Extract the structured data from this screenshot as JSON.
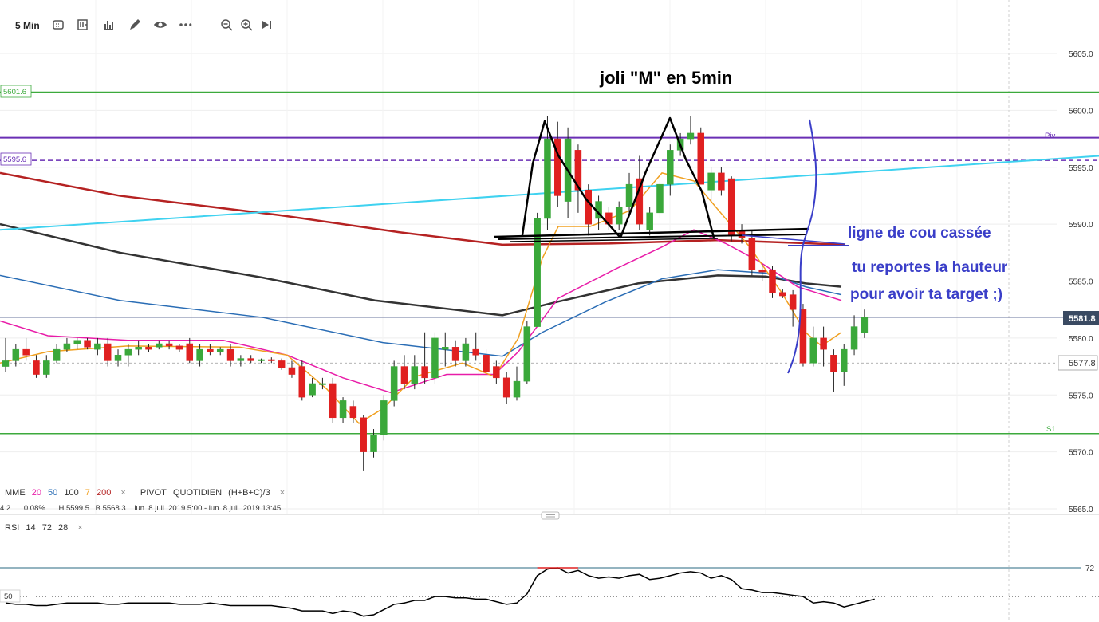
{
  "toolbar": {
    "timeframe": "5 Min",
    "icons": [
      "chart-type-icon",
      "indicators-icon",
      "bar-chart-icon",
      "pencil-icon",
      "eye-icon",
      "more-icon",
      "zoom-out-icon",
      "zoom-in-icon",
      "play-end-icon"
    ]
  },
  "colors": {
    "up": "#3aa83a",
    "down": "#e02020",
    "mme20": "#e81ca8",
    "mme50": "#2a6db5",
    "mme100": "#333333",
    "mme7": "#f0a020",
    "mme200": "#b52222",
    "trend": "#3fd2f0",
    "support": "#3caa3c",
    "pivot": "#6a2fb5",
    "annotation": "#3a3ec8"
  },
  "annotations": {
    "title": "joli \"M\" en 5min",
    "neckline": "ligne de cou cassée",
    "target_line1": "tu reportes la hauteur",
    "target_line2": "pour avoir ta target ;)"
  },
  "levels": {
    "r_label": "5601.6",
    "pivot_label": "5595.6",
    "piv_text": "Piv",
    "s1_text": "S1",
    "current_price": "5581.8",
    "cross_price": "5577.8",
    "rsi_level": "72",
    "rsi_mid": "50"
  },
  "legend": {
    "mme_label": "MME",
    "mme_periods": [
      "20",
      "50",
      "100",
      "7",
      "200"
    ],
    "pivot_label": "PIVOT",
    "pivot_type": "QUOTIDIEN",
    "pivot_formula": "(H+B+C)/3",
    "close_icon": "×",
    "info_change": "4.2",
    "info_pct": "0.08%",
    "info_high": "H 5599.5",
    "info_low": "B 5568.3",
    "info_range": "lun. 8 juil. 2019 5:00 - lun. 8 juil. 2019 13:45",
    "rsi_label": "RSI",
    "rsi_params": [
      "14",
      "72",
      "28"
    ]
  },
  "chart_data": {
    "type": "candlestick",
    "y_ticks": [
      "5605.0",
      "5600.0",
      "5595.0",
      "5590.0",
      "5585.0",
      "5580.0",
      "5575.0",
      "5570.0",
      "5565.0"
    ],
    "ylim": [
      5564.5,
      5608.5
    ],
    "candles": [
      {
        "o": 5577.5,
        "h": 5580.0,
        "l": 5577.0,
        "c": 5578.0
      },
      {
        "o": 5578.0,
        "h": 5579.5,
        "l": 5577.5,
        "c": 5579.0
      },
      {
        "o": 5579.0,
        "h": 5580.0,
        "l": 5578.0,
        "c": 5578.5
      },
      {
        "o": 5578.0,
        "h": 5578.5,
        "l": 5576.5,
        "c": 5576.8
      },
      {
        "o": 5576.8,
        "h": 5578.5,
        "l": 5576.5,
        "c": 5578.0
      },
      {
        "o": 5578.0,
        "h": 5579.5,
        "l": 5577.8,
        "c": 5579.0
      },
      {
        "o": 5579.0,
        "h": 5580.0,
        "l": 5578.8,
        "c": 5579.5
      },
      {
        "o": 5579.5,
        "h": 5580.0,
        "l": 5579.0,
        "c": 5579.8
      },
      {
        "o": 5579.8,
        "h": 5580.0,
        "l": 5579.0,
        "c": 5579.2
      },
      {
        "o": 5579.0,
        "h": 5580.0,
        "l": 5578.5,
        "c": 5579.5
      },
      {
        "o": 5579.5,
        "h": 5580.0,
        "l": 5577.5,
        "c": 5578.0
      },
      {
        "o": 5578.0,
        "h": 5579.0,
        "l": 5577.5,
        "c": 5578.5
      },
      {
        "o": 5578.5,
        "h": 5579.5,
        "l": 5577.5,
        "c": 5579.0
      },
      {
        "o": 5579.0,
        "h": 5579.8,
        "l": 5578.5,
        "c": 5579.2
      },
      {
        "o": 5579.2,
        "h": 5579.5,
        "l": 5578.8,
        "c": 5579.0
      },
      {
        "o": 5579.2,
        "h": 5579.8,
        "l": 5579.0,
        "c": 5579.5
      },
      {
        "o": 5579.5,
        "h": 5579.8,
        "l": 5579.0,
        "c": 5579.3
      },
      {
        "o": 5579.3,
        "h": 5579.5,
        "l": 5578.8,
        "c": 5579.0
      },
      {
        "o": 5579.5,
        "h": 5580.0,
        "l": 5577.8,
        "c": 5578.0
      },
      {
        "o": 5578.0,
        "h": 5579.5,
        "l": 5577.5,
        "c": 5579.0
      },
      {
        "o": 5579.0,
        "h": 5579.5,
        "l": 5578.5,
        "c": 5578.8
      },
      {
        "o": 5578.8,
        "h": 5579.2,
        "l": 5578.5,
        "c": 5579.0
      },
      {
        "o": 5579.0,
        "h": 5579.5,
        "l": 5577.5,
        "c": 5578.0
      },
      {
        "o": 5578.0,
        "h": 5578.5,
        "l": 5577.5,
        "c": 5578.2
      },
      {
        "o": 5578.2,
        "h": 5578.5,
        "l": 5577.8,
        "c": 5578.0
      },
      {
        "o": 5578.0,
        "h": 5578.2,
        "l": 5577.8,
        "c": 5578.1
      },
      {
        "o": 5578.1,
        "h": 5578.3,
        "l": 5577.8,
        "c": 5578.0
      },
      {
        "o": 5578.0,
        "h": 5578.2,
        "l": 5577.2,
        "c": 5577.4
      },
      {
        "o": 5577.4,
        "h": 5578.0,
        "l": 5576.5,
        "c": 5576.8
      },
      {
        "o": 5577.5,
        "h": 5578.0,
        "l": 5574.5,
        "c": 5574.8
      },
      {
        "o": 5575.0,
        "h": 5576.5,
        "l": 5574.8,
        "c": 5576.0
      },
      {
        "o": 5576.0,
        "h": 5576.5,
        "l": 5575.5,
        "c": 5576.0
      },
      {
        "o": 5576.0,
        "h": 5576.5,
        "l": 5572.5,
        "c": 5573.0
      },
      {
        "o": 5573.0,
        "h": 5574.8,
        "l": 5572.5,
        "c": 5574.5
      },
      {
        "o": 5574.0,
        "h": 5574.5,
        "l": 5572.5,
        "c": 5573.0
      },
      {
        "o": 5573.0,
        "h": 5573.2,
        "l": 5568.3,
        "c": 5570.0
      },
      {
        "o": 5570.0,
        "h": 5572.0,
        "l": 5569.5,
        "c": 5571.5
      },
      {
        "o": 5571.5,
        "h": 5575.0,
        "l": 5571.0,
        "c": 5574.5
      },
      {
        "o": 5574.5,
        "h": 5578.0,
        "l": 5574.0,
        "c": 5577.5
      },
      {
        "o": 5577.5,
        "h": 5578.5,
        "l": 5575.5,
        "c": 5576.0
      },
      {
        "o": 5576.0,
        "h": 5578.5,
        "l": 5575.5,
        "c": 5577.5
      },
      {
        "o": 5577.5,
        "h": 5580.5,
        "l": 5576.0,
        "c": 5576.5
      },
      {
        "o": 5576.5,
        "h": 5580.5,
        "l": 5576.0,
        "c": 5580.0
      },
      {
        "o": 5579.0,
        "h": 5580.5,
        "l": 5577.5,
        "c": 5579.2
      },
      {
        "o": 5579.2,
        "h": 5579.8,
        "l": 5577.5,
        "c": 5578.0
      },
      {
        "o": 5578.0,
        "h": 5580.0,
        "l": 5577.5,
        "c": 5579.5
      },
      {
        "o": 5579.0,
        "h": 5580.5,
        "l": 5578.0,
        "c": 5578.5
      },
      {
        "o": 5578.5,
        "h": 5579.0,
        "l": 5577.0,
        "c": 5577.0
      },
      {
        "o": 5577.5,
        "h": 5578.0,
        "l": 5576.0,
        "c": 5576.5
      },
      {
        "o": 5576.5,
        "h": 5577.0,
        "l": 5574.2,
        "c": 5574.8
      },
      {
        "o": 5574.8,
        "h": 5577.5,
        "l": 5574.5,
        "c": 5576.2
      },
      {
        "o": 5576.2,
        "h": 5581.5,
        "l": 5576.0,
        "c": 5581.0
      },
      {
        "o": 5581.0,
        "h": 5591.0,
        "l": 5581.0,
        "c": 5590.5
      },
      {
        "o": 5590.5,
        "h": 5599.5,
        "l": 5589.5,
        "c": 5597.5
      },
      {
        "o": 5597.5,
        "h": 5599.0,
        "l": 5591.5,
        "c": 5592.5
      },
      {
        "o": 5592.0,
        "h": 5598.5,
        "l": 5590.5,
        "c": 5597.5
      },
      {
        "o": 5596.5,
        "h": 5597.0,
        "l": 5591.0,
        "c": 5593.0
      },
      {
        "o": 5593.0,
        "h": 5593.5,
        "l": 5589.0,
        "c": 5590.0
      },
      {
        "o": 5590.5,
        "h": 5592.5,
        "l": 5589.5,
        "c": 5592.0
      },
      {
        "o": 5591.0,
        "h": 5591.5,
        "l": 5589.5,
        "c": 5590.0
      },
      {
        "o": 5590.0,
        "h": 5592.0,
        "l": 5589.5,
        "c": 5591.5
      },
      {
        "o": 5591.5,
        "h": 5594.5,
        "l": 5591.0,
        "c": 5593.5
      },
      {
        "o": 5594.0,
        "h": 5596.0,
        "l": 5589.5,
        "c": 5590.0
      },
      {
        "o": 5589.5,
        "h": 5591.5,
        "l": 5589.0,
        "c": 5591.0
      },
      {
        "o": 5591.0,
        "h": 5594.0,
        "l": 5590.5,
        "c": 5593.5
      },
      {
        "o": 5593.5,
        "h": 5597.0,
        "l": 5592.5,
        "c": 5596.5
      },
      {
        "o": 5596.5,
        "h": 5598.0,
        "l": 5596.0,
        "c": 5597.5
      },
      {
        "o": 5597.5,
        "h": 5599.5,
        "l": 5597.0,
        "c": 5598.0
      },
      {
        "o": 5598.0,
        "h": 5598.5,
        "l": 5593.5,
        "c": 5593.5
      },
      {
        "o": 5593.0,
        "h": 5595.0,
        "l": 5592.0,
        "c": 5594.5
      },
      {
        "o": 5594.5,
        "h": 5595.0,
        "l": 5592.5,
        "c": 5593.0
      },
      {
        "o": 5594.0,
        "h": 5594.2,
        "l": 5588.5,
        "c": 5589.0
      },
      {
        "o": 5589.5,
        "h": 5590.0,
        "l": 5588.3,
        "c": 5588.8
      },
      {
        "o": 5588.8,
        "h": 5589.5,
        "l": 5585.5,
        "c": 5586.0
      },
      {
        "o": 5586.0,
        "h": 5586.5,
        "l": 5585.0,
        "c": 5585.8
      },
      {
        "o": 5586.0,
        "h": 5586.3,
        "l": 5583.5,
        "c": 5584.0
      },
      {
        "o": 5584.0,
        "h": 5584.3,
        "l": 5583.5,
        "c": 5583.7
      },
      {
        "o": 5583.8,
        "h": 5584.2,
        "l": 5581.0,
        "c": 5582.5
      },
      {
        "o": 5582.5,
        "h": 5583.0,
        "l": 5577.5,
        "c": 5577.8
      },
      {
        "o": 5577.8,
        "h": 5581.0,
        "l": 5577.5,
        "c": 5580.0
      },
      {
        "o": 5580.0,
        "h": 5581.0,
        "l": 5577.5,
        "c": 5579.0
      },
      {
        "o": 5578.5,
        "h": 5579.0,
        "l": 5575.3,
        "c": 5577.0
      },
      {
        "o": 5577.0,
        "h": 5579.5,
        "l": 5575.8,
        "c": 5579.0
      },
      {
        "o": 5579.0,
        "h": 5582.0,
        "l": 5578.5,
        "c": 5581.0
      },
      {
        "o": 5580.5,
        "h": 5582.5,
        "l": 5580.0,
        "c": 5581.8
      }
    ],
    "horizontal_levels": [
      {
        "name": "R",
        "value": 5601.6
      },
      {
        "name": "Piv",
        "value": 5597.6
      },
      {
        "name": "Pivot-dashed",
        "value": 5595.6
      },
      {
        "name": "S1",
        "value": 5571.6
      },
      {
        "name": "current",
        "value": 5581.8
      },
      {
        "name": "cross",
        "value": 5577.8
      }
    ],
    "rsi": {
      "level": 72,
      "mid": 50,
      "values": [
        45,
        44,
        44,
        43,
        43,
        44,
        45,
        45,
        45,
        45,
        44,
        44,
        45,
        45,
        45,
        45,
        45,
        44,
        44,
        44,
        45,
        44,
        43,
        43,
        43,
        43,
        43,
        42,
        41,
        39,
        39,
        39,
        37,
        39,
        38,
        35,
        36,
        40,
        44,
        45,
        47,
        47,
        50,
        50,
        49,
        49,
        48,
        48,
        46,
        44,
        45,
        52,
        66,
        71,
        72,
        68,
        70,
        66,
        64,
        65,
        64,
        66,
        67,
        63,
        64,
        66,
        68,
        69,
        68,
        64,
        66,
        63,
        56,
        55,
        53,
        53,
        52,
        51,
        50,
        45,
        46,
        45,
        42,
        44,
        46,
        48
      ]
    }
  }
}
